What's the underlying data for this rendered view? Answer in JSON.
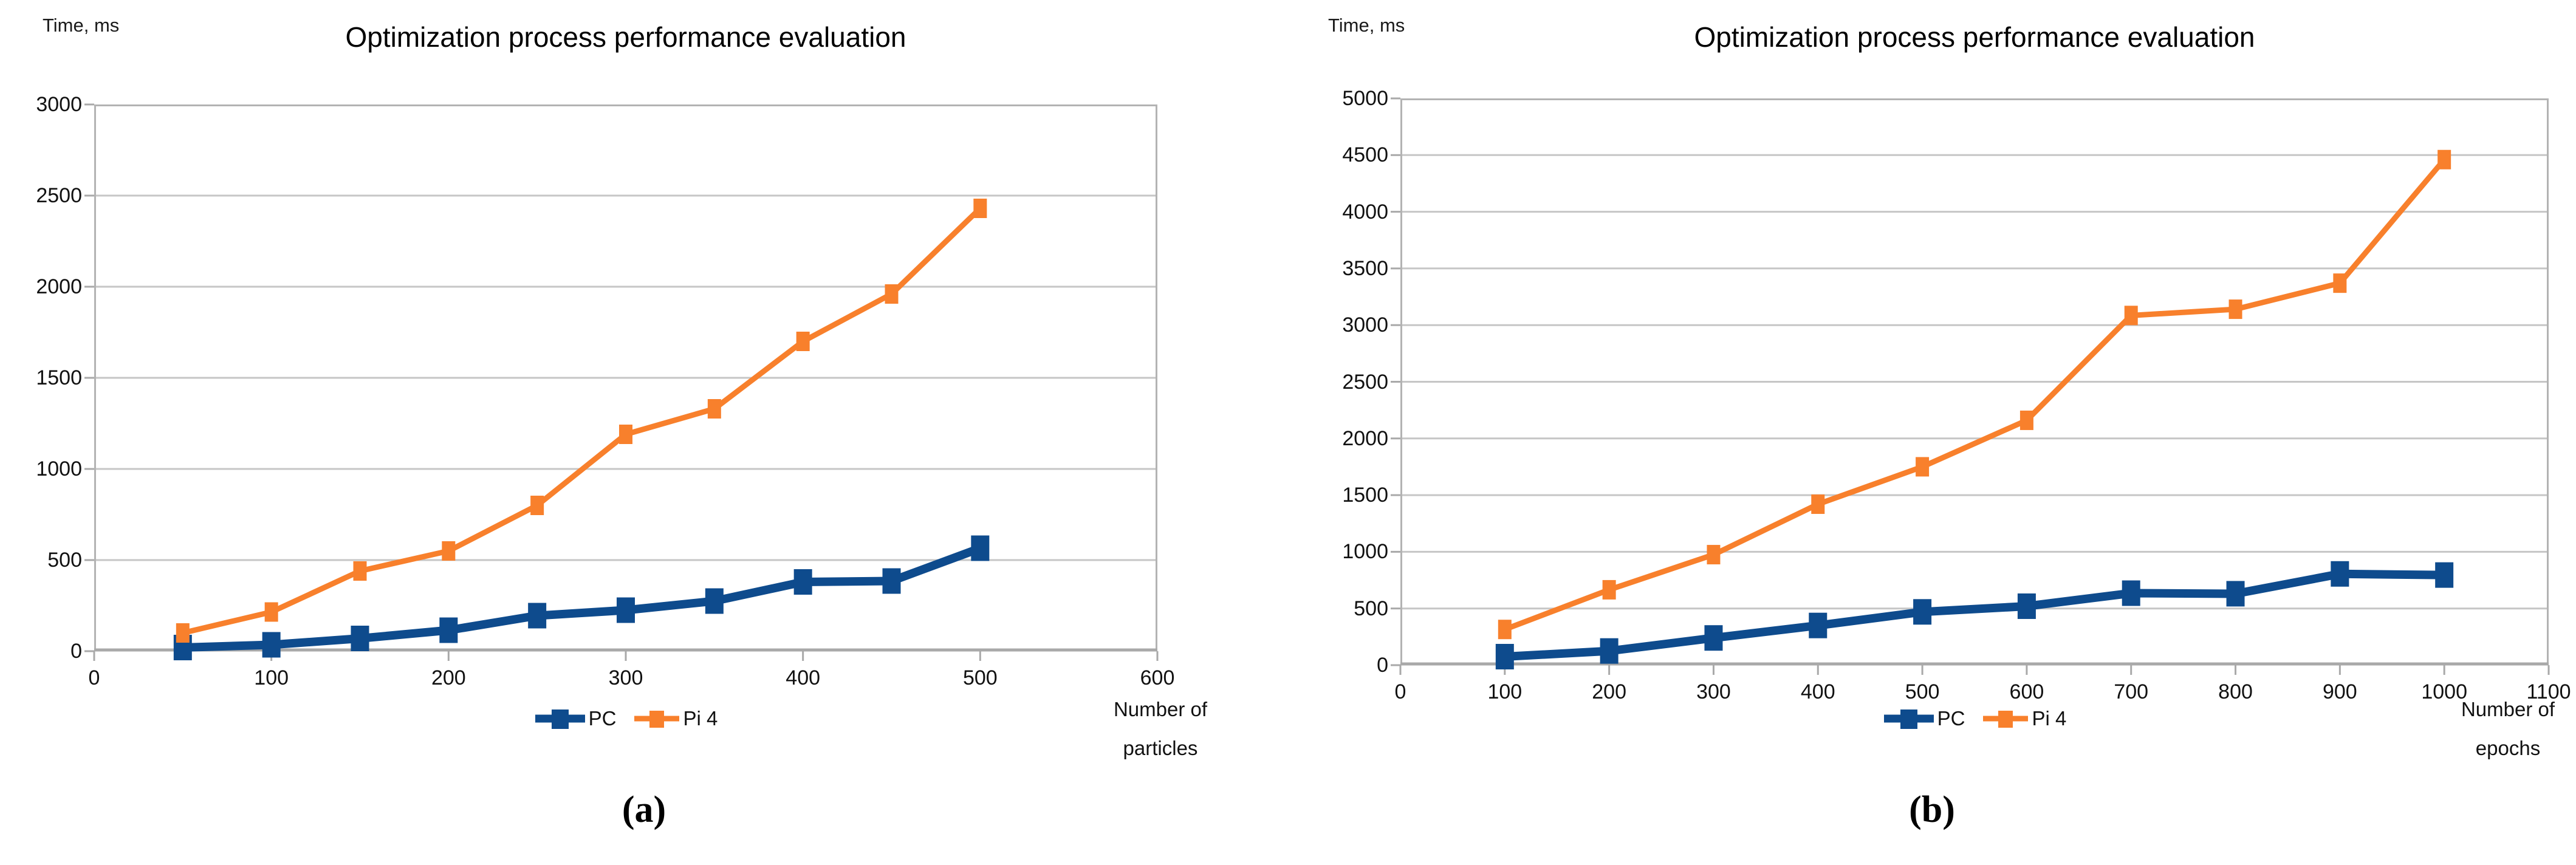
{
  "page": {
    "background": "#ffffff"
  },
  "colors": {
    "pc_series": "#0e4b8d",
    "pi4_series": "#f8802c",
    "gridline": "#c6c6c6",
    "plot_border": "#b3b3b3",
    "axis_line": "#a9a9a9",
    "text": "#111111"
  },
  "chart_data": [
    {
      "type": "line",
      "title": "Optimization process performance evaluation",
      "y_axis_title": "Time, ms",
      "x_axis_title_lines": [
        "Number of",
        "particles"
      ],
      "caption": "(a)",
      "grid": "horizontal",
      "legend_position": "bottom",
      "x_range": [
        0,
        600
      ],
      "y_range": [
        0,
        3000
      ],
      "x_ticks": [
        0,
        100,
        200,
        300,
        400,
        500,
        600
      ],
      "y_ticks": [
        0,
        500,
        1000,
        1500,
        2000,
        2500,
        3000
      ],
      "x": [
        50,
        100,
        150,
        200,
        250,
        300,
        350,
        400,
        450,
        500
      ],
      "series": [
        {
          "name": "PC",
          "color": "#0e4b8d",
          "values": [
            20,
            35,
            70,
            115,
            195,
            225,
            275,
            380,
            385,
            565
          ]
        },
        {
          "name": "Pi 4",
          "color": "#f8802c",
          "values": [
            100,
            215,
            440,
            550,
            800,
            1190,
            1330,
            1700,
            1960,
            2430
          ]
        }
      ]
    },
    {
      "type": "line",
      "title": "Optimization process performance evaluation",
      "y_axis_title": "Time, ms",
      "x_axis_title_lines": [
        "Number of",
        "epochs"
      ],
      "caption": "(b)",
      "grid": "horizontal",
      "legend_position": "bottom",
      "x_range": [
        0,
        1100
      ],
      "y_range": [
        0,
        5000
      ],
      "x_ticks": [
        0,
        100,
        200,
        300,
        400,
        500,
        600,
        700,
        800,
        900,
        1000,
        1100
      ],
      "y_ticks": [
        0,
        500,
        1000,
        1500,
        2000,
        2500,
        3000,
        3500,
        4000,
        4500,
        5000
      ],
      "x": [
        100,
        200,
        300,
        400,
        500,
        600,
        700,
        800,
        900,
        1000
      ],
      "series": [
        {
          "name": "PC",
          "color": "#0e4b8d",
          "values": [
            75,
            125,
            240,
            350,
            470,
            520,
            635,
            630,
            805,
            795
          ]
        },
        {
          "name": "Pi 4",
          "color": "#f8802c",
          "values": [
            315,
            665,
            975,
            1420,
            1750,
            2160,
            3085,
            3140,
            3370,
            4460
          ]
        }
      ]
    }
  ]
}
